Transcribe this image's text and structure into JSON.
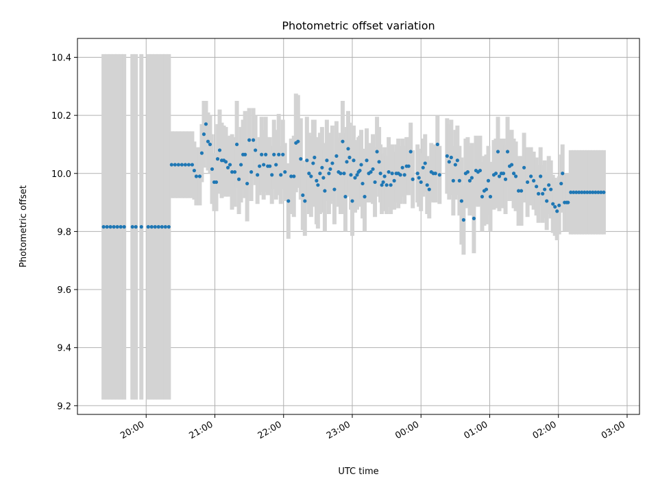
{
  "chart_data": {
    "type": "scatter",
    "title": "Photometric offset variation",
    "xlabel": "UTC time",
    "ylabel": "Photometric offset",
    "xlim_hours": [
      19.0,
      27.18
    ],
    "ylim": [
      9.17,
      10.465
    ],
    "grid": true,
    "x_ticks": [
      {
        "h": 20,
        "label": "20:00"
      },
      {
        "h": 21,
        "label": "21:00"
      },
      {
        "h": 22,
        "label": "22:00"
      },
      {
        "h": 23,
        "label": "23:00"
      },
      {
        "h": 24,
        "label": "00:00"
      },
      {
        "h": 25,
        "label": "01:00"
      },
      {
        "h": 26,
        "label": "02:00"
      },
      {
        "h": 27,
        "label": "03:00"
      }
    ],
    "y_ticks": [
      {
        "v": 9.2,
        "label": "9.2"
      },
      {
        "v": 9.4,
        "label": "9.4"
      },
      {
        "v": 9.6,
        "label": "9.6"
      },
      {
        "v": 9.8,
        "label": "9.8"
      },
      {
        "v": 10.0,
        "label": "10.0"
      },
      {
        "v": 10.2,
        "label": "10.2"
      },
      {
        "v": 10.4,
        "label": "10.4"
      }
    ],
    "colors": {
      "marker": "#1f77b4",
      "errorbar": "#d3d3d3",
      "grid": "#b0b0b0"
    },
    "points": [
      [
        19.38,
        9.816,
        0.595
      ],
      [
        19.43,
        9.816,
        0.595
      ],
      [
        19.48,
        9.816,
        0.595
      ],
      [
        19.53,
        9.816,
        0.595
      ],
      [
        19.58,
        9.816,
        0.595
      ],
      [
        19.63,
        9.816,
        0.595
      ],
      [
        19.68,
        9.816,
        0.595
      ],
      [
        19.8,
        9.816,
        0.595
      ],
      [
        19.85,
        9.816,
        0.595
      ],
      [
        19.93,
        9.816,
        0.595
      ],
      [
        20.03,
        9.816,
        0.595
      ],
      [
        20.08,
        9.816,
        0.595
      ],
      [
        20.13,
        9.816,
        0.595
      ],
      [
        20.18,
        9.816,
        0.595
      ],
      [
        20.23,
        9.816,
        0.595
      ],
      [
        20.28,
        9.816,
        0.595
      ],
      [
        20.33,
        9.816,
        0.595
      ],
      [
        20.37,
        10.03,
        0.115
      ],
      [
        20.42,
        10.03,
        0.115
      ],
      [
        20.47,
        10.03,
        0.115
      ],
      [
        20.52,
        10.03,
        0.115
      ],
      [
        20.57,
        10.03,
        0.115
      ],
      [
        20.62,
        10.03,
        0.115
      ],
      [
        20.67,
        10.03,
        0.115
      ],
      [
        20.7,
        10.01,
        0.1
      ],
      [
        20.73,
        9.99,
        0.1
      ],
      [
        20.78,
        9.99,
        0.1
      ],
      [
        20.81,
        10.07,
        0.1
      ],
      [
        20.84,
        10.135,
        0.115
      ],
      [
        20.87,
        10.17,
        0.08
      ],
      [
        20.9,
        10.11,
        0.1
      ],
      [
        20.93,
        10.1,
        0.1
      ],
      [
        20.96,
        10.015,
        0.12
      ],
      [
        20.99,
        9.97,
        0.1
      ],
      [
        21.02,
        9.97,
        0.1
      ],
      [
        21.04,
        10.05,
        0.12
      ],
      [
        21.07,
        10.08,
        0.14
      ],
      [
        21.1,
        10.045,
        0.13
      ],
      [
        21.13,
        10.045,
        0.12
      ],
      [
        21.16,
        10.04,
        0.12
      ],
      [
        21.19,
        10.02,
        0.1
      ],
      [
        21.22,
        10.03,
        0.1
      ],
      [
        21.25,
        10.005,
        0.13
      ],
      [
        21.29,
        10.005,
        0.12
      ],
      [
        21.32,
        10.1,
        0.15
      ],
      [
        21.35,
        9.98,
        0.12
      ],
      [
        21.38,
        10.03,
        0.13
      ],
      [
        21.41,
        10.065,
        0.12
      ],
      [
        21.44,
        10.065,
        0.15
      ],
      [
        21.47,
        9.965,
        0.13
      ],
      [
        21.5,
        10.115,
        0.11
      ],
      [
        21.53,
        10.005,
        0.1
      ],
      [
        21.56,
        10.115,
        0.11
      ],
      [
        21.59,
        10.08,
        0.12
      ],
      [
        21.62,
        9.995,
        0.1
      ],
      [
        21.65,
        10.025,
        0.1
      ],
      [
        21.68,
        10.065,
        0.13
      ],
      [
        21.71,
        10.03,
        0.12
      ],
      [
        21.74,
        10.065,
        0.13
      ],
      [
        21.77,
        10.025,
        0.1
      ],
      [
        21.8,
        10.025,
        0.1
      ],
      [
        21.83,
        9.995,
        0.1
      ],
      [
        21.86,
        10.065,
        0.12
      ],
      [
        21.89,
        10.03,
        0.12
      ],
      [
        21.93,
        10.065,
        0.14
      ],
      [
        21.96,
        9.995,
        0.1
      ],
      [
        21.99,
        10.065,
        0.12
      ],
      [
        22.02,
        10.005,
        0.1
      ],
      [
        22.07,
        9.905,
        0.13
      ],
      [
        22.11,
        9.99,
        0.13
      ],
      [
        22.15,
        9.99,
        0.14
      ],
      [
        22.18,
        10.105,
        0.17
      ],
      [
        22.21,
        10.11,
        0.16
      ],
      [
        22.25,
        10.05,
        0.14
      ],
      [
        22.28,
        9.925,
        0.12
      ],
      [
        22.31,
        9.905,
        0.12
      ],
      [
        22.34,
        10.045,
        0.15
      ],
      [
        22.37,
        10.0,
        0.14
      ],
      [
        22.4,
        9.99,
        0.14
      ],
      [
        22.43,
        10.035,
        0.15
      ],
      [
        22.45,
        10.055,
        0.13
      ],
      [
        22.48,
        9.975,
        0.15
      ],
      [
        22.5,
        9.96,
        0.15
      ],
      [
        22.53,
        10.0,
        0.14
      ],
      [
        22.56,
        10.02,
        0.14
      ],
      [
        22.58,
        9.985,
        0.12
      ],
      [
        22.6,
        9.94,
        0.14
      ],
      [
        22.63,
        10.045,
        0.14
      ],
      [
        22.66,
        10.0,
        0.14
      ],
      [
        22.68,
        10.015,
        0.12
      ],
      [
        22.71,
        10.035,
        0.13
      ],
      [
        22.74,
        9.945,
        0.12
      ],
      [
        22.77,
        10.06,
        0.12
      ],
      [
        22.8,
        10.005,
        0.12
      ],
      [
        22.83,
        10.0,
        0.14
      ],
      [
        22.86,
        10.11,
        0.14
      ],
      [
        22.88,
        10.0,
        0.14
      ],
      [
        22.9,
        9.92,
        0.12
      ],
      [
        22.92,
        10.04,
        0.12
      ],
      [
        22.94,
        10.085,
        0.13
      ],
      [
        22.96,
        10.055,
        0.12
      ],
      [
        22.98,
        9.995,
        0.12
      ],
      [
        23.0,
        9.905,
        0.12
      ],
      [
        23.02,
        10.045,
        0.12
      ],
      [
        23.04,
        9.985,
        0.12
      ],
      [
        23.07,
        9.995,
        0.12
      ],
      [
        23.09,
        10.005,
        0.12
      ],
      [
        23.11,
        10.01,
        0.12
      ],
      [
        23.13,
        10.03,
        0.12
      ],
      [
        23.15,
        9.965,
        0.12
      ],
      [
        23.18,
        9.92,
        0.12
      ],
      [
        23.21,
        10.045,
        0.11
      ],
      [
        23.24,
        10.0,
        0.1
      ],
      [
        23.27,
        10.005,
        0.1
      ],
      [
        23.3,
        10.015,
        0.12
      ],
      [
        23.33,
        9.97,
        0.12
      ],
      [
        23.36,
        10.075,
        0.12
      ],
      [
        23.39,
        10.04,
        0.12
      ],
      [
        23.41,
        10.0,
        0.1
      ],
      [
        23.43,
        9.96,
        0.1
      ],
      [
        23.45,
        9.97,
        0.1
      ],
      [
        23.47,
        9.99,
        0.1
      ],
      [
        23.5,
        9.96,
        0.1
      ],
      [
        23.53,
        10.005,
        0.12
      ],
      [
        23.56,
        9.96,
        0.1
      ],
      [
        23.58,
        10.0,
        0.1
      ],
      [
        23.61,
        9.975,
        0.1
      ],
      [
        23.64,
        10.0,
        0.1
      ],
      [
        23.67,
        10.0,
        0.12
      ],
      [
        23.7,
        9.995,
        0.1
      ],
      [
        23.73,
        10.02,
        0.1
      ],
      [
        23.76,
        9.995,
        0.1
      ],
      [
        23.79,
        10.025,
        0.1
      ],
      [
        23.82,
        10.025,
        0.1
      ],
      [
        23.85,
        10.075,
        0.1
      ],
      [
        23.88,
        9.98,
        0.1
      ],
      [
        23.95,
        10.0,
        0.1
      ],
      [
        23.97,
        9.985,
        0.1
      ],
      [
        24.0,
        9.97,
        0.1
      ],
      [
        24.03,
        10.02,
        0.1
      ],
      [
        24.06,
        10.035,
        0.1
      ],
      [
        24.09,
        9.96,
        0.1
      ],
      [
        24.12,
        9.945,
        0.1
      ],
      [
        24.15,
        10.005,
        0.1
      ],
      [
        24.18,
        10.0,
        0.1
      ],
      [
        24.21,
        10.0,
        0.1
      ],
      [
        24.24,
        10.1,
        0.1
      ],
      [
        24.27,
        9.995,
        0.1
      ],
      [
        24.38,
        10.06,
        0.13
      ],
      [
        24.41,
        10.04,
        0.13
      ],
      [
        24.44,
        10.055,
        0.13
      ],
      [
        24.47,
        9.975,
        0.12
      ],
      [
        24.5,
        10.03,
        0.12
      ],
      [
        24.53,
        10.045,
        0.12
      ],
      [
        24.56,
        9.975,
        0.12
      ],
      [
        24.59,
        9.905,
        0.15
      ],
      [
        24.62,
        9.84,
        0.12
      ],
      [
        24.65,
        10.0,
        0.12
      ],
      [
        24.68,
        10.005,
        0.12
      ],
      [
        24.71,
        9.975,
        0.12
      ],
      [
        24.74,
        9.985,
        0.12
      ],
      [
        24.77,
        9.845,
        0.12
      ],
      [
        24.8,
        10.01,
        0.12
      ],
      [
        24.83,
        10.005,
        0.12
      ],
      [
        24.86,
        10.01,
        0.12
      ],
      [
        24.89,
        9.92,
        0.12
      ],
      [
        24.92,
        9.94,
        0.12
      ],
      [
        24.95,
        9.945,
        0.12
      ],
      [
        24.98,
        9.975,
        0.12
      ],
      [
        25.01,
        9.92,
        0.12
      ],
      [
        25.06,
        9.995,
        0.12
      ],
      [
        25.09,
        10.0,
        0.12
      ],
      [
        25.12,
        10.075,
        0.12
      ],
      [
        25.14,
        9.99,
        0.12
      ],
      [
        25.17,
        10.0,
        0.12
      ],
      [
        25.2,
        10.0,
        0.12
      ],
      [
        25.23,
        9.98,
        0.12
      ],
      [
        25.26,
        10.075,
        0.12
      ],
      [
        25.29,
        10.025,
        0.12
      ],
      [
        25.32,
        10.03,
        0.12
      ],
      [
        25.35,
        10.0,
        0.12
      ],
      [
        25.38,
        9.99,
        0.12
      ],
      [
        25.42,
        9.94,
        0.12
      ],
      [
        25.46,
        9.94,
        0.12
      ],
      [
        25.5,
        10.02,
        0.12
      ],
      [
        25.55,
        9.97,
        0.12
      ],
      [
        25.6,
        9.99,
        0.1
      ],
      [
        25.64,
        9.975,
        0.1
      ],
      [
        25.68,
        9.955,
        0.1
      ],
      [
        25.71,
        9.93,
        0.1
      ],
      [
        25.74,
        9.99,
        0.1
      ],
      [
        25.77,
        9.93,
        0.1
      ],
      [
        25.8,
        9.945,
        0.1
      ],
      [
        25.83,
        9.905,
        0.1
      ],
      [
        25.86,
        9.96,
        0.1
      ],
      [
        25.89,
        9.945,
        0.1
      ],
      [
        25.92,
        9.895,
        0.1
      ],
      [
        25.95,
        9.885,
        0.1
      ],
      [
        25.98,
        9.87,
        0.1
      ],
      [
        26.01,
        9.89,
        0.1
      ],
      [
        26.04,
        9.965,
        0.1
      ],
      [
        26.06,
        10.0,
        0.1
      ],
      [
        26.09,
        9.9,
        0.1
      ],
      [
        26.12,
        9.9,
        0.1
      ],
      [
        26.14,
        9.9,
        0.1
      ],
      [
        26.18,
        9.935,
        0.145
      ],
      [
        26.22,
        9.935,
        0.145
      ],
      [
        26.26,
        9.935,
        0.145
      ],
      [
        26.3,
        9.935,
        0.145
      ],
      [
        26.34,
        9.935,
        0.145
      ],
      [
        26.38,
        9.935,
        0.145
      ],
      [
        26.42,
        9.935,
        0.145
      ],
      [
        26.46,
        9.935,
        0.145
      ],
      [
        26.5,
        9.935,
        0.145
      ],
      [
        26.54,
        9.935,
        0.145
      ],
      [
        26.58,
        9.935,
        0.145
      ],
      [
        26.62,
        9.935,
        0.145
      ],
      [
        26.66,
        9.935,
        0.145
      ]
    ]
  }
}
